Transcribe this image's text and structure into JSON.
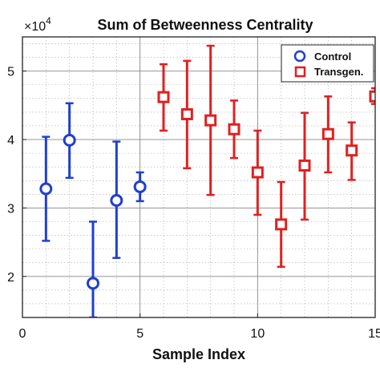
{
  "chart_data": {
    "type": "scatter",
    "title": "Sum of Betweenness Centrality",
    "xlabel": "Sample Index",
    "ylabel": "",
    "y_exponent_label": "×10",
    "y_exponent_power": "4",
    "xlim": [
      0,
      15
    ],
    "ylim": [
      1.4,
      5.5
    ],
    "x_ticks": [
      0,
      5,
      10,
      15
    ],
    "x_tick_labels": [
      "0",
      "5",
      "10",
      "15"
    ],
    "y_ticks": [
      2,
      3,
      4,
      5
    ],
    "y_tick_labels": [
      "2",
      "3",
      "4",
      "5"
    ],
    "grid": true,
    "minor_grid": true,
    "legend_position": "top-right",
    "series": [
      {
        "name": "Control",
        "color": "#1f3fd1",
        "marker": "circle",
        "points": [
          {
            "x": 1,
            "y": 3.28,
            "low": 2.52,
            "high": 4.04
          },
          {
            "x": 2,
            "y": 3.99,
            "low": 3.44,
            "high": 4.53
          },
          {
            "x": 3,
            "y": 1.9,
            "low": 1.4,
            "high": 2.8
          },
          {
            "x": 4,
            "y": 3.11,
            "low": 2.27,
            "high": 3.97
          },
          {
            "x": 5,
            "y": 3.31,
            "low": 3.1,
            "high": 3.52
          }
        ]
      },
      {
        "name": "Transgen.",
        "color": "#e02020",
        "marker": "square",
        "points": [
          {
            "x": 6,
            "y": 4.62,
            "low": 4.13,
            "high": 5.1
          },
          {
            "x": 7,
            "y": 4.37,
            "low": 3.58,
            "high": 5.15
          },
          {
            "x": 8,
            "y": 4.28,
            "low": 3.19,
            "high": 5.37
          },
          {
            "x": 9,
            "y": 4.15,
            "low": 3.73,
            "high": 4.57
          },
          {
            "x": 10,
            "y": 3.52,
            "low": 2.9,
            "high": 4.13
          },
          {
            "x": 11,
            "y": 2.76,
            "low": 2.14,
            "high": 3.38
          },
          {
            "x": 12,
            "y": 3.62,
            "low": 2.83,
            "high": 4.39
          },
          {
            "x": 13,
            "y": 4.08,
            "low": 3.52,
            "high": 4.63
          },
          {
            "x": 14,
            "y": 3.84,
            "low": 3.41,
            "high": 4.25
          },
          {
            "x": 15,
            "y": 4.63,
            "low": 4.52,
            "high": 4.75
          }
        ]
      }
    ]
  }
}
